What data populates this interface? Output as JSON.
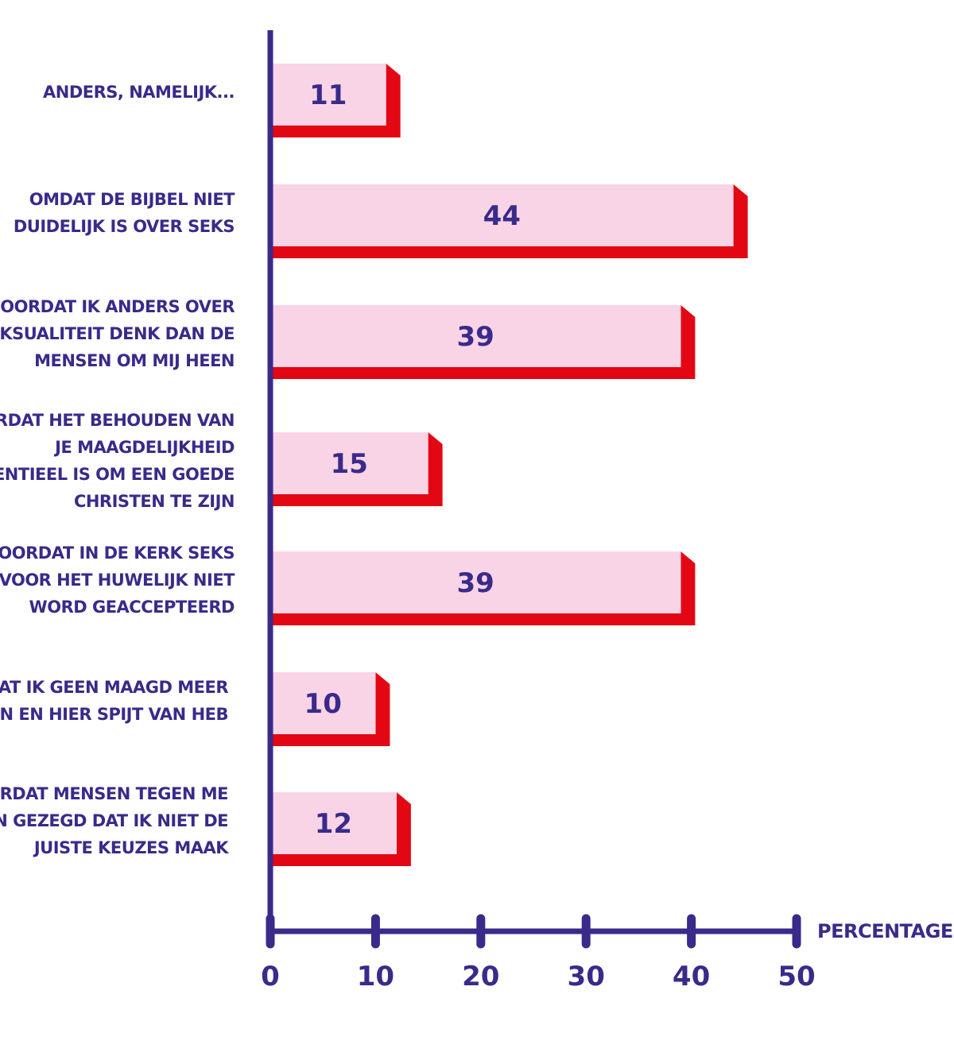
{
  "chart_data": {
    "type": "bar",
    "orientation": "horizontal",
    "categories": [
      [
        "ANDERS, NAMELIJK..."
      ],
      [
        "OMDAT DE BIJBEL NIET",
        "DUIDELIJK IS OVER SEKS"
      ],
      [
        "DOORDAT IK ANDERS OVER",
        "SEKSUALITEIT DENK DAN DE",
        "MENSEN OM MIJ HEEN"
      ],
      [
        "DOORDAT HET BEHOUDEN VAN",
        "JE MAAGDELIJKHEID",
        "ESSENTIEEL IS OM EEN GOEDE",
        "CHRISTEN TE ZIJN"
      ],
      [
        "DOORDAT IN DE KERK SEKS",
        "VOOR HET HUWELIJK NIET",
        "WORD GEACCEPTEERD"
      ],
      [
        "DOORDAT IK GEEN MAAGD MEER",
        "BEN EN HIER SPIJT VAN HEB"
      ],
      [
        "DOORDAT MENSEN TEGEN ME",
        "HEBBEN GEZEGD DAT IK NIET DE",
        "JUISTE KEUZES MAAK"
      ]
    ],
    "values": [
      11,
      44,
      39,
      15,
      39,
      10,
      12
    ],
    "value_labels": [
      "11",
      "44",
      "39",
      "15",
      "39",
      "10",
      "12"
    ],
    "xlabel": "PERCENTAGE",
    "xlim": [
      0,
      50
    ],
    "xticks": [
      0,
      10,
      20,
      30,
      40,
      50
    ],
    "xtick_labels": [
      "0",
      "10",
      "20",
      "30",
      "40",
      "50"
    ],
    "grid": false,
    "legend": "none"
  },
  "colors": {
    "bar_face": "#f8d4e6",
    "bar_shadow": "#e30613",
    "axis": "#3a2a8a",
    "text": "#3a2a8a"
  }
}
